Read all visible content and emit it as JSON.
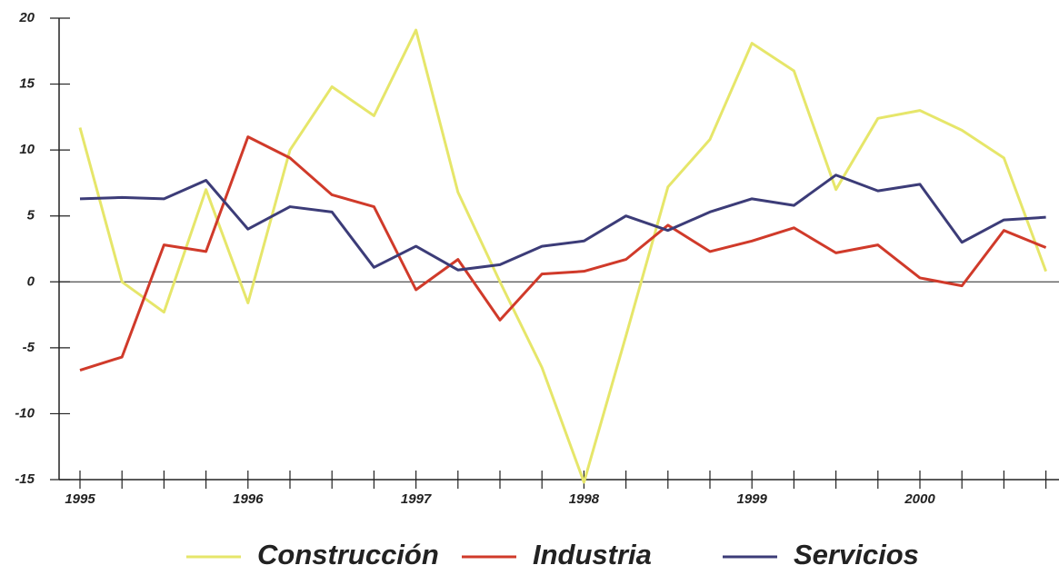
{
  "chart_data": {
    "type": "line",
    "categories": [
      "1995",
      null,
      null,
      null,
      "1996",
      null,
      null,
      null,
      "1997",
      null,
      null,
      null,
      "1998",
      null,
      null,
      null,
      "1999",
      null,
      null,
      null,
      "2000",
      null,
      null,
      null
    ],
    "series": [
      {
        "name": "Construcción",
        "color": "#e6e66a",
        "values": [
          11.7,
          0,
          -2.3,
          7.0,
          -1.6,
          10.0,
          14.8,
          12.6,
          19.1,
          6.8,
          0,
          -6.5,
          -15.2,
          -4.1,
          7.2,
          10.8,
          18.1,
          16.0,
          7.0,
          12.4,
          13.0,
          11.5,
          9.4,
          0.8
        ]
      },
      {
        "name": "Industria",
        "color": "#d03a2a",
        "values": [
          -6.7,
          -5.7,
          2.8,
          2.3,
          11.0,
          9.4,
          6.6,
          5.7,
          -0.6,
          1.7,
          -2.9,
          0.6,
          0.8,
          1.7,
          4.3,
          2.3,
          3.1,
          4.1,
          2.2,
          2.8,
          0.3,
          -0.3,
          3.9,
          2.6
        ]
      },
      {
        "name": "Servicios",
        "color": "#3c3c78",
        "values": [
          6.3,
          6.4,
          6.3,
          7.7,
          4.0,
          5.7,
          5.3,
          1.1,
          2.7,
          0.9,
          1.3,
          2.7,
          3.1,
          5.0,
          3.9,
          5.3,
          6.3,
          5.8,
          8.1,
          6.9,
          7.4,
          3.0,
          4.7,
          4.9
        ]
      }
    ],
    "ylim": [
      -15,
      20
    ],
    "yticks": [
      -15,
      -10,
      -5,
      0,
      5,
      10,
      15,
      20
    ],
    "legend": "bottom"
  }
}
